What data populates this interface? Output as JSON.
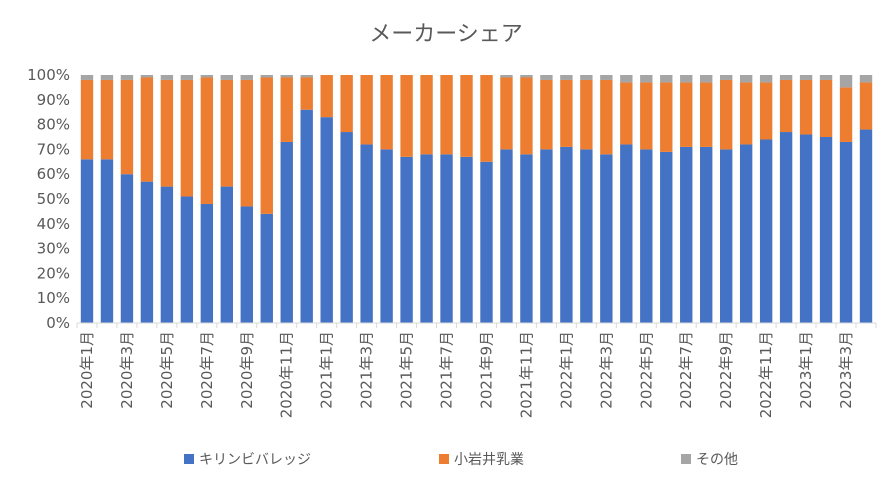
{
  "chart_data": {
    "type": "bar",
    "stacked": true,
    "percent": true,
    "title": "メーカーシェア",
    "xlabel": "",
    "ylabel": "",
    "ylim": [
      0,
      100
    ],
    "yticks": [
      "0%",
      "10%",
      "20%",
      "30%",
      "40%",
      "50%",
      "60%",
      "70%",
      "80%",
      "90%",
      "100%"
    ],
    "grid": false,
    "legend_position": "bottom",
    "categories": [
      "2020年1月",
      "2020年2月",
      "2020年3月",
      "2020年4月",
      "2020年5月",
      "2020年6月",
      "2020年7月",
      "2020年8月",
      "2020年9月",
      "2020年10月",
      "2020年11月",
      "2020年12月",
      "2021年1月",
      "2021年2月",
      "2021年3月",
      "2021年4月",
      "2021年5月",
      "2021年6月",
      "2021年7月",
      "2021年8月",
      "2021年9月",
      "2021年10月",
      "2021年11月",
      "2021年12月",
      "2022年1月",
      "2022年2月",
      "2022年3月",
      "2022年4月",
      "2022年5月",
      "2022年6月",
      "2022年7月",
      "2022年8月",
      "2022年9月",
      "2022年10月",
      "2022年11月",
      "2022年12月",
      "2023年1月",
      "2023年2月",
      "2023年3月",
      "2023年4月"
    ],
    "tick_labels": [
      "2020年1月",
      "2020年3月",
      "2020年5月",
      "2020年7月",
      "2020年9月",
      "2020年11月",
      "2021年1月",
      "2021年3月",
      "2021年5月",
      "2021年7月",
      "2021年9月",
      "2021年11月",
      "2022年1月",
      "2022年3月",
      "2022年5月",
      "2022年7月",
      "2022年9月",
      "2022年11月",
      "2023年1月",
      "2023年3月"
    ],
    "series": [
      {
        "name": "キリンビバレッジ",
        "color": "#4472c4",
        "values": [
          66,
          66,
          60,
          57,
          55,
          51,
          48,
          55,
          47,
          44,
          73,
          86,
          83,
          77,
          72,
          70,
          67,
          68,
          68,
          67,
          65,
          70,
          68,
          70,
          71,
          70,
          68,
          72,
          70,
          69,
          71,
          71,
          70,
          72,
          74,
          77,
          76,
          75,
          73,
          78
        ]
      },
      {
        "name": "小岩井乳業",
        "color": "#ed7d31",
        "values": [
          32,
          32,
          38,
          42,
          43,
          47,
          51,
          43,
          51,
          55,
          26,
          13,
          17,
          23,
          28,
          30,
          33,
          32,
          32,
          33,
          35,
          29,
          31,
          28,
          27,
          28,
          30,
          25,
          27,
          28,
          26,
          26,
          28,
          25,
          23,
          21,
          22,
          23,
          22,
          19
        ]
      },
      {
        "name": "その他",
        "color": "#a5a5a5",
        "values": [
          2,
          2,
          2,
          1,
          2,
          2,
          1,
          2,
          2,
          1,
          1,
          1,
          0,
          0,
          0,
          0,
          0,
          0,
          0,
          0,
          0,
          1,
          1,
          2,
          2,
          2,
          2,
          3,
          3,
          3,
          3,
          3,
          2,
          3,
          3,
          2,
          2,
          2,
          5,
          3
        ]
      }
    ]
  }
}
